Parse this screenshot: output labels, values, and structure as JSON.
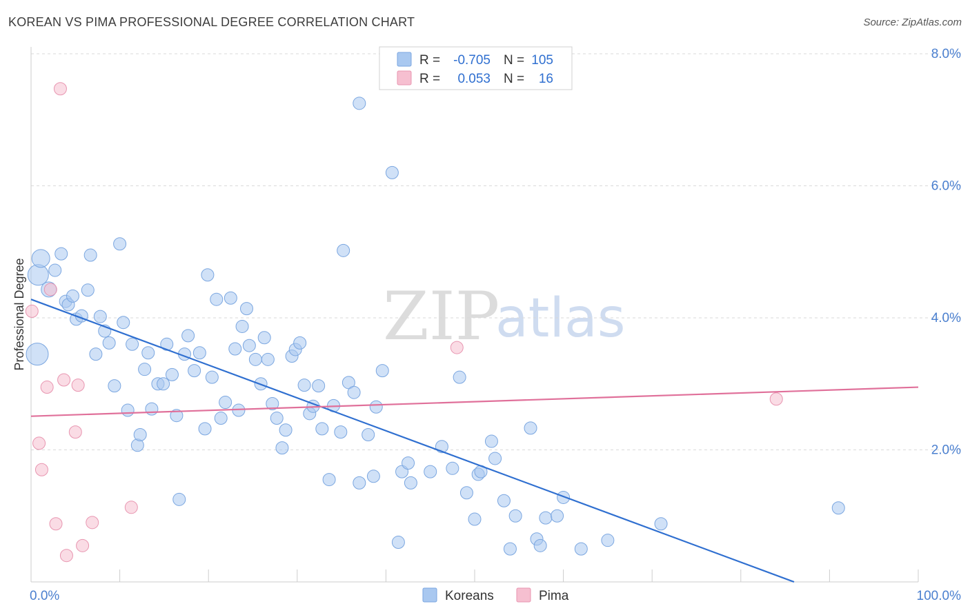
{
  "header": {
    "title": "KOREAN VS PIMA PROFESSIONAL DEGREE CORRELATION CHART",
    "source": "Source: ZipAtlas.com"
  },
  "watermark": {
    "zip": "ZIP",
    "atlas": "atlas"
  },
  "colors": {
    "koreans_fill": "#a9c8f0",
    "koreans_stroke": "#7aa6e0",
    "koreans_line": "#2f6fd0",
    "pima_fill": "#f6bfd0",
    "pima_stroke": "#e895b0",
    "pima_line": "#e0709a",
    "grid": "#d9d9d9",
    "tick_label": "#4a7fcf"
  },
  "legend_top": {
    "rows": [
      {
        "r_label": "R =",
        "r_value": "-0.705",
        "n_label": "N =",
        "n_value": "105"
      },
      {
        "r_label": "R =",
        "r_value": "0.053",
        "n_label": "N =",
        "n_value": "16"
      }
    ]
  },
  "legend_bottom": {
    "items": [
      "Koreans",
      "Pima"
    ]
  },
  "chart_data": {
    "type": "scatter",
    "title": "KOREAN VS PIMA PROFESSIONAL DEGREE CORRELATION CHART",
    "xlabel": "",
    "ylabel": "Professional Degree",
    "xlim": [
      0,
      100
    ],
    "ylim": [
      0,
      8.3
    ],
    "x_tick_labels": [
      "0.0%",
      "100.0%"
    ],
    "y_ticks": [
      2,
      4,
      6,
      8
    ],
    "y_tick_labels": [
      "2.0%",
      "4.0%",
      "6.0%",
      "8.0%"
    ],
    "grid": true,
    "legend_placement": "top-center",
    "series": [
      {
        "name": "Koreans",
        "r": -0.705,
        "n": 105,
        "trend": {
          "x": [
            0,
            86
          ],
          "y": [
            4.28,
            0.0
          ]
        },
        "points": [
          [
            0.7,
            3.45,
            16
          ],
          [
            0.8,
            4.65,
            15
          ],
          [
            1.1,
            4.9,
            13
          ],
          [
            2.0,
            4.43,
            11
          ],
          [
            2.7,
            4.72,
            9
          ],
          [
            3.4,
            4.97,
            9
          ],
          [
            3.9,
            4.25,
            9
          ],
          [
            4.2,
            4.2,
            9
          ],
          [
            4.7,
            4.33,
            9
          ],
          [
            5.1,
            3.98,
            9
          ],
          [
            5.7,
            4.03,
            9
          ],
          [
            6.4,
            4.42,
            9
          ],
          [
            6.7,
            4.95,
            9
          ],
          [
            7.3,
            3.45,
            9
          ],
          [
            7.8,
            4.02,
            9
          ],
          [
            8.3,
            3.8,
            9
          ],
          [
            8.8,
            3.62,
            9
          ],
          [
            9.4,
            2.97,
            9
          ],
          [
            10.0,
            5.12,
            9
          ],
          [
            10.4,
            3.93,
            9
          ],
          [
            10.9,
            2.6,
            9
          ],
          [
            11.4,
            3.6,
            9
          ],
          [
            12.0,
            2.07,
            9
          ],
          [
            12.3,
            2.23,
            9
          ],
          [
            12.8,
            3.22,
            9
          ],
          [
            13.2,
            3.47,
            9
          ],
          [
            13.6,
            2.62,
            9
          ],
          [
            14.3,
            3.0,
            9
          ],
          [
            14.9,
            3.0,
            9
          ],
          [
            15.3,
            3.6,
            9
          ],
          [
            15.9,
            3.14,
            9
          ],
          [
            16.4,
            2.52,
            9
          ],
          [
            16.7,
            1.25,
            9
          ],
          [
            17.3,
            3.45,
            9
          ],
          [
            17.7,
            3.73,
            9
          ],
          [
            18.4,
            3.2,
            9
          ],
          [
            19.0,
            3.47,
            9
          ],
          [
            19.6,
            2.32,
            9
          ],
          [
            19.9,
            4.65,
            9
          ],
          [
            20.4,
            3.1,
            9
          ],
          [
            20.9,
            4.28,
            9
          ],
          [
            21.4,
            2.48,
            9
          ],
          [
            21.9,
            2.72,
            9
          ],
          [
            22.5,
            4.3,
            9
          ],
          [
            23.0,
            3.53,
            9
          ],
          [
            23.4,
            2.6,
            9
          ],
          [
            23.8,
            3.87,
            9
          ],
          [
            24.3,
            4.14,
            9
          ],
          [
            24.6,
            3.58,
            9
          ],
          [
            25.3,
            3.37,
            9
          ],
          [
            25.9,
            3.0,
            9
          ],
          [
            26.3,
            3.7,
            9
          ],
          [
            26.7,
            3.37,
            9
          ],
          [
            27.2,
            2.7,
            9
          ],
          [
            27.7,
            2.48,
            9
          ],
          [
            28.3,
            2.03,
            9
          ],
          [
            28.7,
            2.3,
            9
          ],
          [
            29.4,
            3.42,
            9
          ],
          [
            29.8,
            3.52,
            9
          ],
          [
            30.3,
            3.62,
            9
          ],
          [
            30.8,
            2.98,
            9
          ],
          [
            31.4,
            2.55,
            9
          ],
          [
            31.8,
            2.66,
            9
          ],
          [
            32.4,
            2.97,
            9
          ],
          [
            32.8,
            2.32,
            9
          ],
          [
            33.6,
            1.55,
            9
          ],
          [
            34.1,
            2.67,
            9
          ],
          [
            34.9,
            2.27,
            9
          ],
          [
            35.2,
            5.02,
            9
          ],
          [
            35.8,
            3.02,
            9
          ],
          [
            36.4,
            2.87,
            9
          ],
          [
            37.0,
            7.25,
            9
          ],
          [
            37.0,
            1.5,
            9
          ],
          [
            38.0,
            2.23,
            9
          ],
          [
            38.6,
            1.6,
            9
          ],
          [
            38.9,
            2.65,
            9
          ],
          [
            39.6,
            3.2,
            9
          ],
          [
            40.7,
            6.2,
            9
          ],
          [
            41.4,
            0.6,
            9
          ],
          [
            41.8,
            1.67,
            9
          ],
          [
            42.5,
            1.8,
            9
          ],
          [
            42.8,
            1.5,
            9
          ],
          [
            45.0,
            1.67,
            9
          ],
          [
            46.3,
            2.05,
            9
          ],
          [
            47.5,
            1.72,
            9
          ],
          [
            48.3,
            3.1,
            9
          ],
          [
            49.1,
            1.35,
            9
          ],
          [
            50.0,
            0.95,
            9
          ],
          [
            50.4,
            1.63,
            9
          ],
          [
            50.7,
            1.67,
            9
          ],
          [
            51.9,
            2.13,
            9
          ],
          [
            52.3,
            1.87,
            9
          ],
          [
            53.3,
            1.23,
            9
          ],
          [
            54.0,
            0.5,
            9
          ],
          [
            54.6,
            1.0,
            9
          ],
          [
            56.3,
            2.33,
            9
          ],
          [
            57.0,
            0.65,
            9
          ],
          [
            57.4,
            0.55,
            9
          ],
          [
            58.0,
            0.97,
            9
          ],
          [
            59.3,
            1.0,
            9
          ],
          [
            60.0,
            1.28,
            9
          ],
          [
            62.0,
            0.5,
            9
          ],
          [
            65.0,
            0.63,
            9
          ],
          [
            71.0,
            0.88,
            9
          ],
          [
            91.0,
            1.12,
            9
          ]
        ]
      },
      {
        "name": "Pima",
        "r": 0.053,
        "n": 16,
        "trend": {
          "x": [
            0,
            100
          ],
          "y": [
            2.51,
            2.95
          ]
        },
        "points": [
          [
            0.1,
            4.1,
            9
          ],
          [
            0.9,
            2.1,
            9
          ],
          [
            1.2,
            1.7,
            9
          ],
          [
            1.8,
            2.95,
            9
          ],
          [
            2.2,
            4.43,
            9
          ],
          [
            2.8,
            0.88,
            9
          ],
          [
            3.3,
            7.47,
            9
          ],
          [
            3.7,
            3.06,
            9
          ],
          [
            4.0,
            0.4,
            9
          ],
          [
            5.0,
            2.27,
            9
          ],
          [
            5.3,
            2.98,
            9
          ],
          [
            5.8,
            0.55,
            9
          ],
          [
            6.9,
            0.9,
            9
          ],
          [
            11.3,
            1.13,
            9
          ],
          [
            48.0,
            3.55,
            9
          ],
          [
            84.0,
            2.77,
            9
          ]
        ]
      }
    ]
  }
}
